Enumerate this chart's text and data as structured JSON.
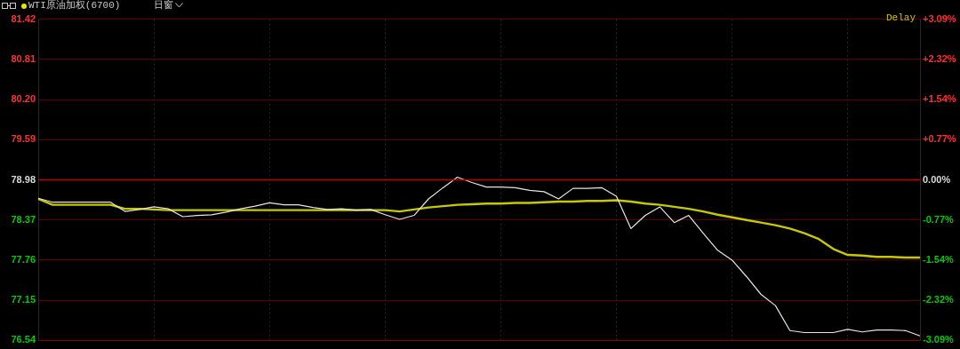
{
  "chart_data": {
    "type": "line",
    "title": "WTI原油加权(6700)",
    "annotations": [
      "日窗",
      "Delay"
    ],
    "categories": [
      null,
      null,
      null,
      null,
      null,
      null,
      null,
      null,
      null,
      null,
      null,
      null,
      null,
      null,
      null,
      null,
      null,
      null,
      null,
      null,
      null,
      null,
      null,
      null,
      null,
      null,
      null,
      null,
      null,
      null,
      null,
      null,
      null,
      null,
      null,
      null,
      null,
      null,
      null,
      null,
      null,
      null,
      null,
      null,
      null,
      null,
      null,
      null,
      null,
      null,
      null,
      null,
      null,
      null,
      null,
      null,
      null,
      null,
      null,
      null,
      null,
      null
    ],
    "series": [
      {
        "color": "#e6e6e6",
        "values": [
          78.7,
          78.64,
          78.64,
          78.64,
          78.64,
          78.64,
          78.5,
          78.53,
          78.57,
          78.54,
          78.42,
          78.44,
          78.45,
          78.49,
          78.54,
          78.58,
          78.63,
          78.6,
          78.6,
          78.56,
          78.53,
          78.54,
          78.52,
          78.53,
          78.45,
          78.38,
          78.44,
          78.69,
          78.86,
          79.02,
          78.94,
          78.87,
          78.87,
          78.86,
          78.82,
          78.8,
          78.69,
          78.85,
          78.85,
          78.86,
          78.73,
          78.24,
          78.44,
          78.57,
          78.33,
          78.44,
          78.17,
          77.91,
          77.76,
          77.51,
          77.24,
          77.07,
          76.69,
          76.66,
          76.66,
          76.66,
          76.71,
          76.67,
          76.7,
          76.7,
          76.69,
          76.61
        ]
      },
      {
        "color": "#c8c800",
        "values": [
          78.69,
          78.6,
          78.6,
          78.6,
          78.6,
          78.6,
          78.54,
          78.54,
          78.53,
          78.52,
          78.52,
          78.52,
          78.52,
          78.52,
          78.52,
          78.52,
          78.52,
          78.52,
          78.52,
          78.52,
          78.52,
          78.52,
          78.52,
          78.52,
          78.52,
          78.5,
          78.53,
          78.56,
          78.58,
          78.6,
          78.61,
          78.62,
          78.62,
          78.63,
          78.63,
          78.64,
          78.65,
          78.65,
          78.66,
          78.66,
          78.67,
          78.65,
          78.62,
          78.6,
          78.57,
          78.54,
          78.5,
          78.45,
          78.41,
          78.37,
          78.33,
          78.29,
          78.24,
          78.17,
          78.08,
          77.93,
          77.84,
          77.83,
          77.81,
          77.81,
          77.8,
          77.8
        ]
      }
    ],
    "ylim": [
      76.54,
      81.42
    ],
    "yticks": [
      {
        "value": 76.54,
        "label": "76.54"
      },
      {
        "value": 77.15,
        "label": "77.15"
      },
      {
        "value": 77.76,
        "label": "77.76"
      },
      {
        "value": 78.37,
        "label": "78.37"
      },
      {
        "value": 78.98,
        "label": "78.98"
      },
      {
        "value": 79.59,
        "label": "79.59"
      },
      {
        "value": 80.2,
        "label": "80.20"
      },
      {
        "value": 80.81,
        "label": "80.81"
      },
      {
        "value": 81.42,
        "label": "81.42"
      }
    ],
    "y2lim": [
      -3.09,
      3.09
    ],
    "y2ticks": [
      {
        "value": -3.09,
        "label": "-3.09%"
      },
      {
        "value": -2.32,
        "label": "-2.32%"
      },
      {
        "value": -1.54,
        "label": "-1.54%"
      },
      {
        "value": -0.77,
        "label": "-0.77%"
      },
      {
        "value": 0,
        "label": "0.00%"
      },
      {
        "value": 0.77,
        "label": "+0.77%"
      },
      {
        "value": 1.54,
        "label": "+1.54%"
      },
      {
        "value": 2.32,
        "label": "+2.32%"
      },
      {
        "value": 3.09,
        "label": "+3.09%"
      }
    ],
    "ref_lines": [
      {
        "axis": "y",
        "value": 78.98,
        "color": "#c00000"
      }
    ],
    "grid": true,
    "legend": false,
    "marker": "none",
    "line_style": "solid"
  }
}
